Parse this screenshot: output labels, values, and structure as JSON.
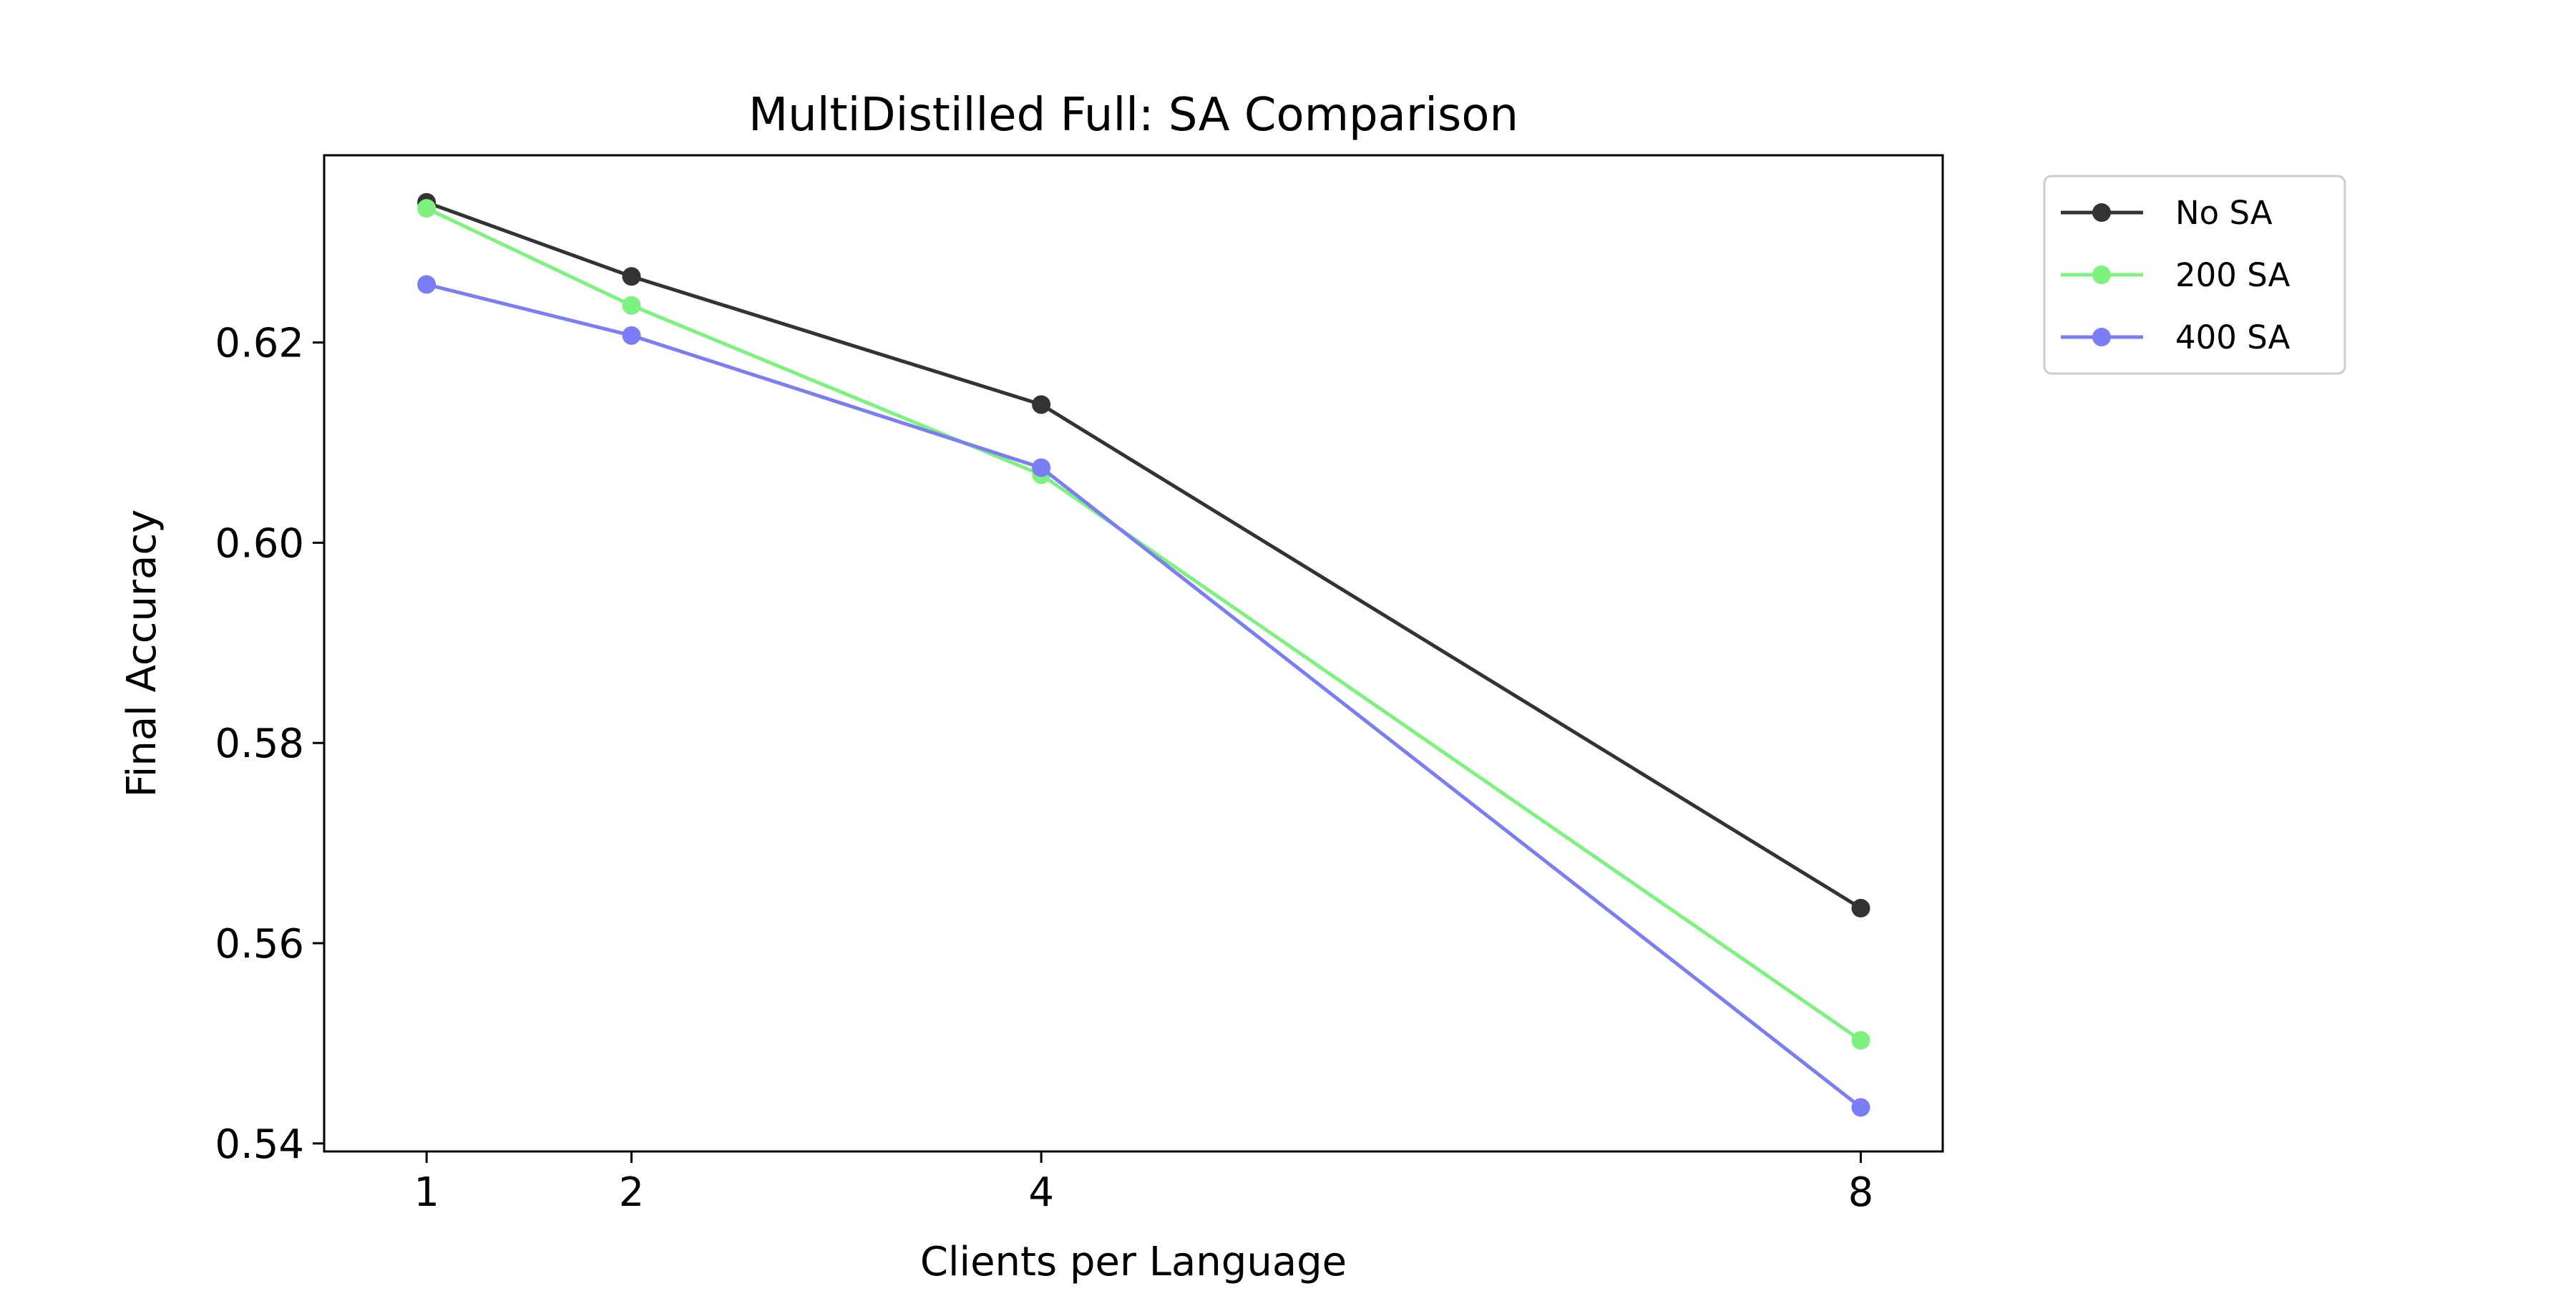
{
  "chart_data": {
    "type": "line",
    "title": "MultiDistilled Full: SA Comparison",
    "xlabel": "Clients per Language",
    "ylabel": "Final Accuracy",
    "x": [
      1,
      2,
      4,
      8
    ],
    "x_ticks": [
      "1",
      "2",
      "4",
      "8"
    ],
    "y_ticks": [
      "0.54",
      "0.56",
      "0.58",
      "0.60",
      "0.62"
    ],
    "y_tick_values": [
      0.54,
      0.56,
      0.58,
      0.6,
      0.62
    ],
    "xlim": [
      0.5,
      8.4
    ],
    "ylim": [
      0.5392,
      0.6387
    ],
    "grid": false,
    "legend_position": "outside upper right",
    "series": [
      {
        "name": "No SA",
        "color": "#333333",
        "values": [
          0.634,
          0.6266,
          0.6138,
          0.5635
        ]
      },
      {
        "name": "200 SA",
        "color": "#7ef27e",
        "values": [
          0.6334,
          0.6237,
          0.6068,
          0.5503
        ]
      },
      {
        "name": "400 SA",
        "color": "#7b7ef2",
        "values": [
          0.6258,
          0.6207,
          0.6075,
          0.5436
        ]
      }
    ]
  }
}
